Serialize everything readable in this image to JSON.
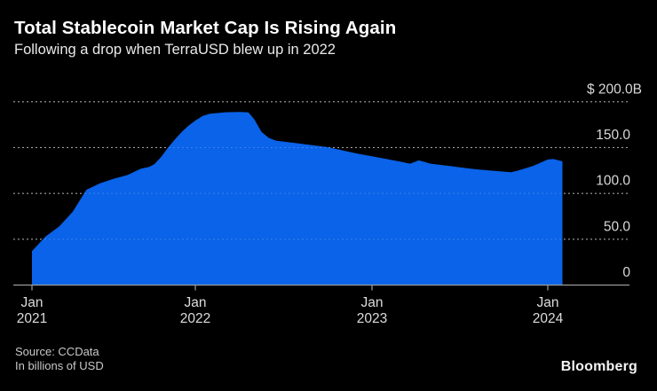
{
  "header": {
    "title": "Total Stablecoin Market Cap Is Rising Again",
    "subtitle": "Following a drop when TerraUSD blew up in 2022"
  },
  "footer": {
    "source_line1": "Source: CCData",
    "source_line2": "In billions of USD",
    "brand": "Bloomberg"
  },
  "colors": {
    "background": "#000000",
    "area_fill": "#0a63e8",
    "gridline": "#8a8a8a",
    "axis_line": "#9a9a9a",
    "axis_label": "#d9d9d9",
    "title_text": "#ffffff"
  },
  "chart_data": {
    "type": "area",
    "title": "Total Stablecoin Market Cap Is Rising Again",
    "subtitle": "Following a drop when TerraUSD blew up in 2022",
    "unit": "billions of USD",
    "source": "CCData",
    "legend": "none",
    "grid": "dotted horizontal",
    "x_start": "2021-01",
    "x_end": "2024-02",
    "ylim": [
      0,
      200
    ],
    "y_axis": {
      "side": "right",
      "ticks": [
        {
          "value": 200,
          "label": "$ 200.0B"
        },
        {
          "value": 150,
          "label": "150.0"
        },
        {
          "value": 100,
          "label": "100.0"
        },
        {
          "value": 50,
          "label": "50.0"
        },
        {
          "value": 0,
          "label": "0"
        }
      ]
    },
    "x_axis": {
      "tick_months": [
        0,
        12,
        24,
        36
      ],
      "tick_labels": [
        {
          "line1": "Jan",
          "line2": "2021"
        },
        {
          "line1": "Jan",
          "line2": "2022"
        },
        {
          "line1": "Jan",
          "line2": "2023"
        },
        {
          "line1": "Jan",
          "line2": "2024"
        }
      ]
    },
    "series": [
      {
        "name": "Total stablecoin market cap ($B)",
        "color": "#0a63e8",
        "points_format": "[months_since_2021_01, value_billions_usd]",
        "points": [
          [
            0,
            37
          ],
          [
            1,
            53
          ],
          [
            2,
            64
          ],
          [
            3,
            80
          ],
          [
            4,
            104
          ],
          [
            5,
            111
          ],
          [
            6,
            116
          ],
          [
            7,
            120
          ],
          [
            8,
            127
          ],
          [
            8.6,
            129
          ],
          [
            9,
            132
          ],
          [
            9.5,
            140
          ],
          [
            10,
            150
          ],
          [
            10.5,
            159
          ],
          [
            11,
            167
          ],
          [
            11.5,
            174
          ],
          [
            12,
            179.5
          ],
          [
            12.5,
            184.5
          ],
          [
            13,
            187
          ],
          [
            14,
            188.5
          ],
          [
            15,
            189
          ],
          [
            15.6,
            188.5
          ],
          [
            16,
            181
          ],
          [
            16.5,
            167
          ],
          [
            17,
            160.5
          ],
          [
            17.5,
            157.5
          ],
          [
            18,
            156.5
          ],
          [
            19,
            154.5
          ],
          [
            20,
            152.5
          ],
          [
            21,
            150.5
          ],
          [
            22,
            147
          ],
          [
            23,
            143.5
          ],
          [
            24,
            140.5
          ],
          [
            25,
            137.5
          ],
          [
            26,
            134.5
          ],
          [
            26.6,
            132.5
          ],
          [
            27.2,
            136
          ],
          [
            28,
            132.5
          ],
          [
            29,
            130.5
          ],
          [
            30,
            128.5
          ],
          [
            31,
            126.5
          ],
          [
            32,
            125
          ],
          [
            33,
            123.8
          ],
          [
            33.5,
            123.2
          ],
          [
            34,
            125
          ],
          [
            35,
            130
          ],
          [
            35.5,
            133.5
          ],
          [
            36,
            137
          ],
          [
            36.4,
            137.5
          ],
          [
            37,
            135
          ]
        ]
      }
    ]
  }
}
